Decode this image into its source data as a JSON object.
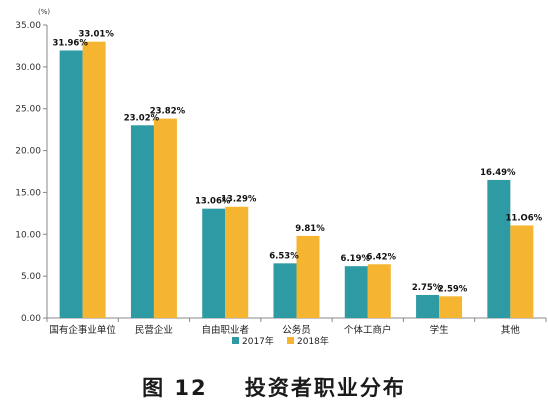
{
  "chart_data": {
    "type": "bar",
    "unit_label": "(%)",
    "categories": [
      "国有企事业单位",
      "民营企业",
      "自由职业者",
      "公务员",
      "个体工商户",
      "学生",
      "其他"
    ],
    "series": [
      {
        "name": "2017年",
        "color": "#2e9aa3",
        "values": [
          31.96,
          23.02,
          13.06,
          6.53,
          6.19,
          2.75,
          16.49
        ],
        "labels": [
          "31.96%",
          "23.02%",
          "13.06%",
          "6.53%",
          "6.19%",
          "2.75%",
          "16.49%"
        ]
      },
      {
        "name": "2018年",
        "color": "#f5b531",
        "values": [
          33.01,
          23.82,
          13.29,
          9.81,
          6.42,
          2.59,
          11.06
        ],
        "labels": [
          "33.01%",
          "23.82%",
          "13.29%",
          "9.81%",
          "6.42%",
          "2.59%",
          "11.O6%"
        ]
      }
    ],
    "ylim": [
      0,
      35
    ],
    "yticks": [
      "0.00",
      "5.00",
      "10.00",
      "15.00",
      "20.00",
      "25.00",
      "30.00",
      "35.00"
    ],
    "ytick_values": [
      0,
      5,
      10,
      15,
      20,
      25,
      30,
      35
    ],
    "legend_position": "bottom",
    "grid": false
  },
  "caption": "图 12    投资者职业分布"
}
